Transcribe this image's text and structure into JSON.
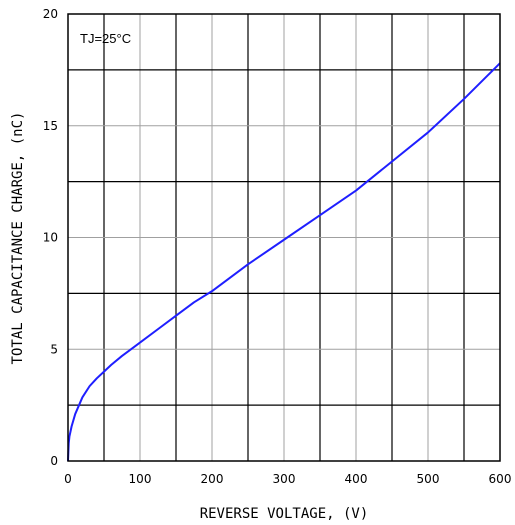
{
  "chart_data": {
    "type": "line",
    "xlabel": "REVERSE VOLTAGE, (V)",
    "ylabel": "TOTAL CAPACITANCE CHARGE, (nC)",
    "xlim": [
      0,
      600
    ],
    "ylim": [
      0,
      20
    ],
    "x_ticks": [
      0,
      100,
      200,
      300,
      400,
      500,
      600
    ],
    "y_ticks": [
      0,
      5,
      10,
      15,
      20
    ],
    "x_minor_step": 50,
    "y_minor_step": 2.5,
    "grid": true,
    "annotation": "TJ=25°C",
    "series": [
      {
        "color": "#1f1fff",
        "x": [
          0,
          1,
          2,
          5,
          10,
          20,
          30,
          40,
          50,
          60,
          75,
          100,
          125,
          150,
          175,
          200,
          250,
          300,
          350,
          400,
          450,
          500,
          550,
          600
        ],
        "y": [
          0,
          0.8,
          1.1,
          1.55,
          2.1,
          2.85,
          3.35,
          3.7,
          4.0,
          4.3,
          4.7,
          5.3,
          5.9,
          6.5,
          7.1,
          7.6,
          8.8,
          9.9,
          11.0,
          12.1,
          13.4,
          14.7,
          16.2,
          17.8
        ]
      }
    ]
  }
}
